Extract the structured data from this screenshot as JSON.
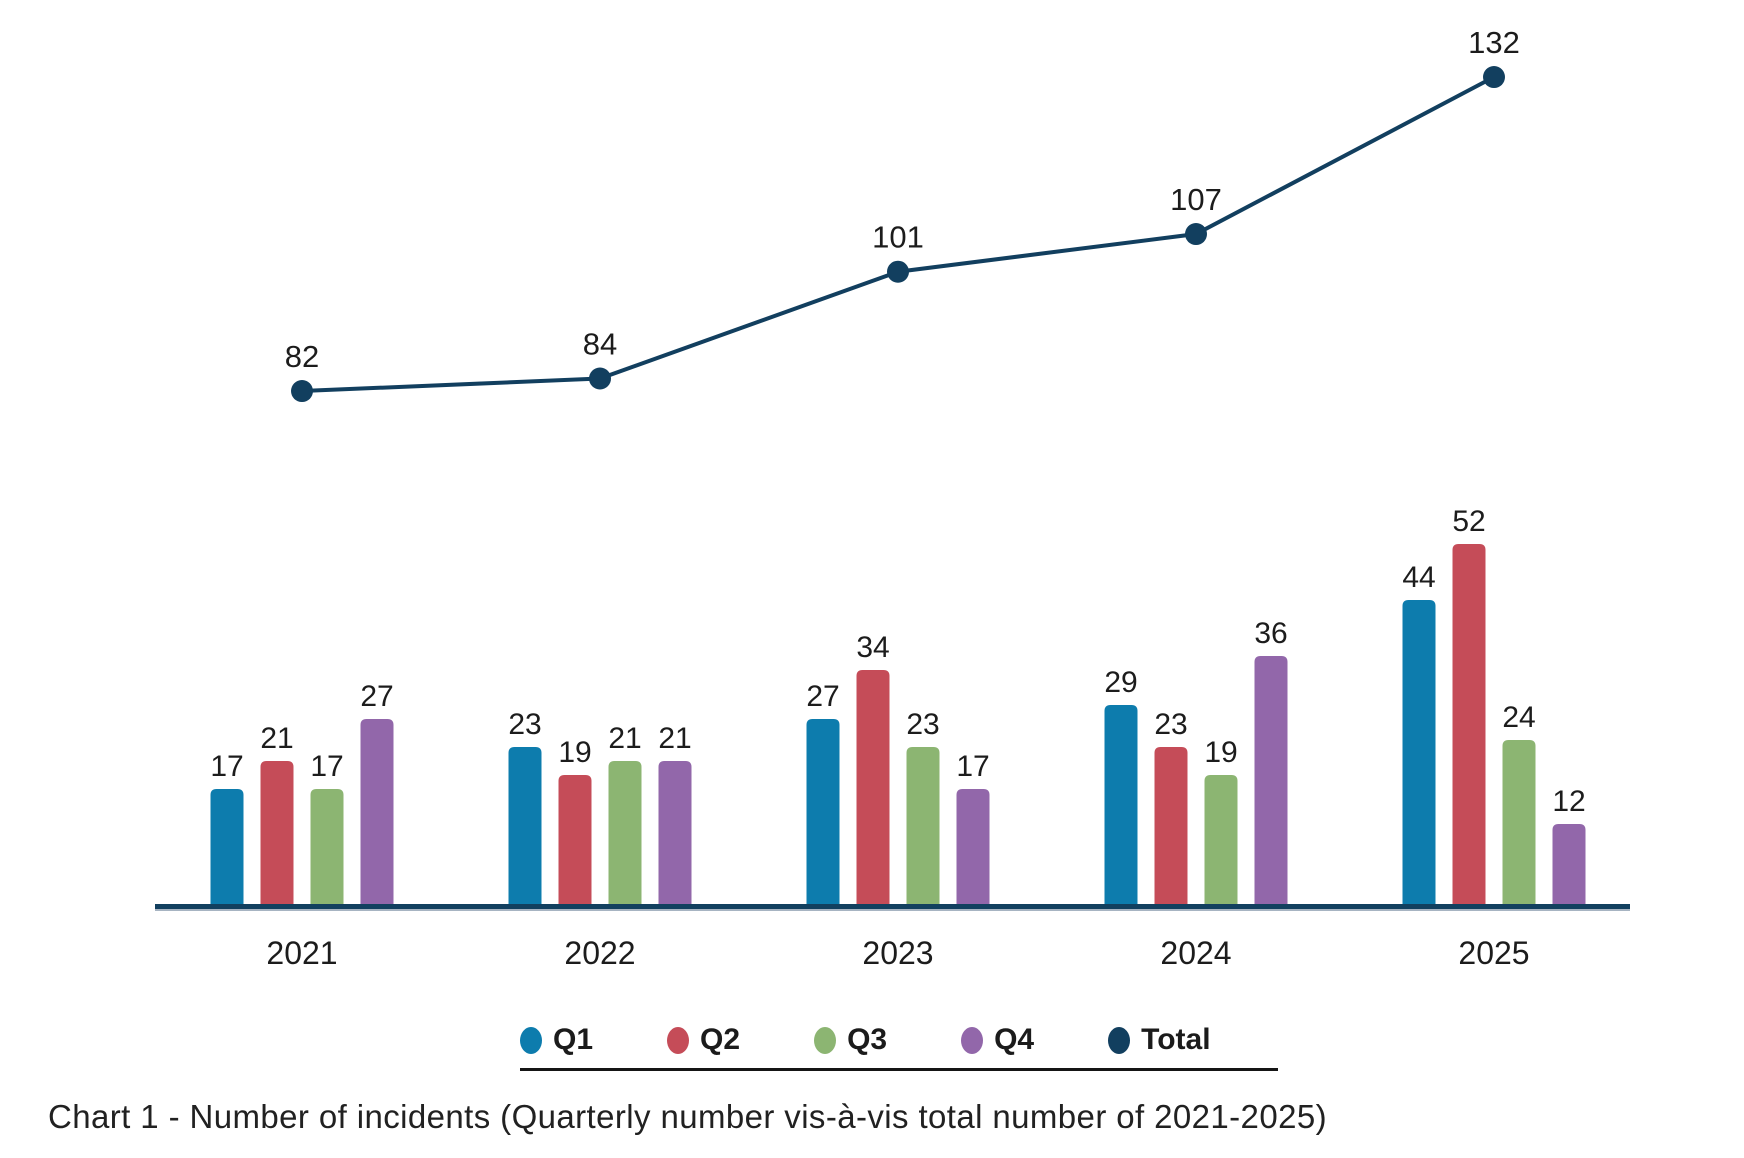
{
  "chart_data": {
    "type": "combo-bar-line",
    "title": "",
    "caption": "Chart 1 - Number of incidents (Quarterly number vis-à-vis total number of 2021-2025)",
    "categories": [
      "2021",
      "2022",
      "2023",
      "2024",
      "2025"
    ],
    "series": [
      {
        "name": "Q1",
        "type": "bar",
        "color": "#0d7cad",
        "values": [
          17,
          23,
          27,
          29,
          44
        ]
      },
      {
        "name": "Q2",
        "type": "bar",
        "color": "#c54c58",
        "values": [
          21,
          19,
          34,
          23,
          52
        ]
      },
      {
        "name": "Q3",
        "type": "bar",
        "color": "#8cb572",
        "values": [
          17,
          21,
          23,
          19,
          24
        ]
      },
      {
        "name": "Q4",
        "type": "bar",
        "color": "#9267aa",
        "values": [
          27,
          21,
          17,
          36,
          12
        ]
      },
      {
        "name": "Total",
        "type": "line",
        "color": "#123f5f",
        "values": [
          82,
          84,
          101,
          107,
          132
        ]
      }
    ],
    "data_labels": true,
    "legend_position": "bottom",
    "legend_items": [
      "Q1",
      "Q2",
      "Q3",
      "Q4",
      "Total"
    ],
    "axis_color": "#12405f",
    "axis_shadow_color": "#a7b4c2",
    "label_color": "#1c1c1c",
    "gridlines": false,
    "y_axis_visible": false
  }
}
